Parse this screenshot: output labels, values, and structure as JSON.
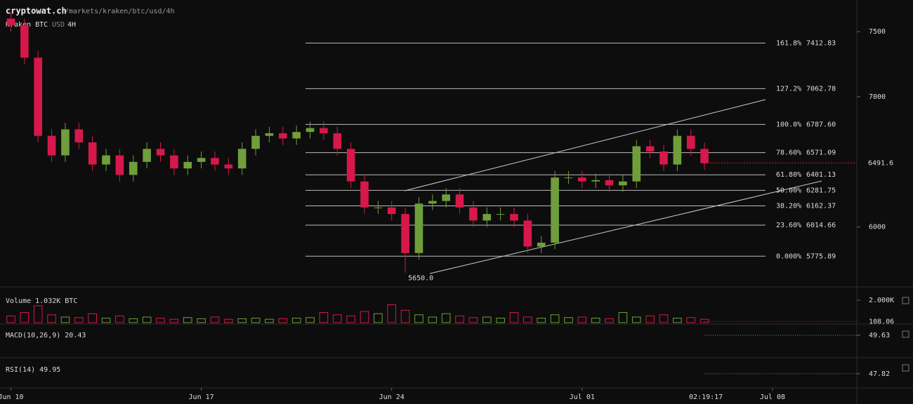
{
  "header": {
    "site": "cryptowat.ch",
    "path": "/markets/kraken/btc/usd/4h",
    "market": "Kraken BTC",
    "quote": "USD",
    "interval": "4H"
  },
  "chart_data": [
    {
      "type": "candlestick",
      "x": [
        0,
        0.5,
        1,
        1.5,
        2,
        2.5,
        3,
        3.5,
        4,
        4.5,
        5,
        5.5,
        6,
        6.5,
        7,
        7.5,
        8,
        8.5,
        9,
        9.5,
        10,
        10.5,
        11,
        11.5,
        12,
        12.5,
        13,
        13.5,
        14,
        14.5,
        15,
        15.5,
        16,
        16.5,
        17,
        17.5,
        18,
        18.5,
        19,
        19.5,
        20,
        20.5,
        21,
        21.5,
        22,
        22.5,
        23,
        23.5,
        24,
        24.5,
        25,
        25.5
      ],
      "open": [
        7600,
        7550,
        7300,
        6700,
        6550,
        6750,
        6650,
        6480,
        6550,
        6400,
        6500,
        6600,
        6550,
        6450,
        6500,
        6530,
        6480,
        6450,
        6600,
        6700,
        6720,
        6680,
        6730,
        6760,
        6720,
        6600,
        6350,
        6150,
        6150,
        6100,
        5800,
        6180,
        6200,
        6250,
        6150,
        6050,
        6100,
        6100,
        6050,
        5850,
        5880,
        6380,
        6380,
        6350,
        6360,
        6320,
        6350,
        6620,
        6580,
        6480,
        6700,
        6600
      ],
      "high": [
        7650,
        7600,
        7350,
        6750,
        6800,
        6800,
        6700,
        6600,
        6600,
        6550,
        6650,
        6650,
        6600,
        6550,
        6580,
        6580,
        6530,
        6650,
        6750,
        6770,
        6770,
        6780,
        6810,
        6810,
        6770,
        6650,
        6400,
        6200,
        6200,
        6150,
        6230,
        6250,
        6300,
        6300,
        6200,
        6150,
        6150,
        6150,
        6100,
        5930,
        6430,
        6430,
        6430,
        6410,
        6410,
        6400,
        6670,
        6670,
        6630,
        6750,
        6750,
        6650
      ],
      "low": [
        7500,
        7250,
        6650,
        6500,
        6500,
        6600,
        6430,
        6430,
        6350,
        6350,
        6450,
        6500,
        6400,
        6400,
        6450,
        6430,
        6400,
        6400,
        6550,
        6650,
        6630,
        6630,
        6680,
        6670,
        6550,
        6300,
        6100,
        6100,
        6050,
        5650,
        5750,
        6130,
        6150,
        6100,
        6000,
        6000,
        6050,
        6000,
        5800,
        5800,
        5830,
        6330,
        6300,
        6300,
        6270,
        6270,
        6300,
        6530,
        6430,
        6430,
        6550,
        6440
      ],
      "close": [
        7550,
        7300,
        6700,
        6550,
        6750,
        6650,
        6480,
        6550,
        6400,
        6500,
        6600,
        6550,
        6450,
        6500,
        6530,
        6480,
        6450,
        6600,
        6700,
        6720,
        6680,
        6730,
        6760,
        6720,
        6600,
        6350,
        6150,
        6150,
        6100,
        5800,
        6180,
        6200,
        6250,
        6150,
        6050,
        6100,
        6100,
        6050,
        5850,
        5880,
        6380,
        6380,
        6350,
        6360,
        6320,
        6350,
        6620,
        6580,
        6480,
        6700,
        6600,
        6490
      ],
      "xlim": [
        -0.4,
        31.1
      ],
      "xticks": [
        {
          "value": 0,
          "label": "Jun 10"
        },
        {
          "value": 7,
          "label": "Jun 17"
        },
        {
          "value": 14,
          "label": "Jun 24"
        },
        {
          "value": 21,
          "label": "Jul 01"
        },
        {
          "value": 28,
          "label": "Jul 08"
        }
      ],
      "ylim": [
        5546,
        7743
      ],
      "yticks": [
        6000,
        7000,
        7500
      ],
      "up_color": "#6f9e3b",
      "down_color": "#d6184a",
      "fib_levels": [
        {
          "ratio": "161.8%",
          "price": 7412.83
        },
        {
          "ratio": "127.2%",
          "price": 7062.78
        },
        {
          "ratio": "100.0%",
          "price": {
            "value": 6787.6,
            "label": "6787.60"
          }
        },
        {
          "ratio": "78.60%",
          "price": 6571.09
        },
        {
          "ratio": "61.80%",
          "price": 6401.13
        },
        {
          "ratio": "50.00%",
          "price": 6281.75
        },
        {
          "ratio": "38.20%",
          "price": 6162.37
        },
        {
          "ratio": "23.60%",
          "price": 6014.66
        },
        {
          "ratio": "0.000%",
          "price": 5775.89
        }
      ],
      "last_price": 6491.6,
      "low_label": {
        "value": 5650,
        "label": "5650.0"
      },
      "current_time": "02:19:17"
    },
    {
      "type": "bar",
      "title": "Volume 1.032K BTC",
      "values": [
        600,
        900,
        1500,
        700,
        500,
        450,
        800,
        400,
        600,
        350,
        500,
        400,
        300,
        450,
        350,
        500,
        300,
        350,
        400,
        300,
        350,
        400,
        450,
        900,
        700,
        600,
        1000,
        800,
        1600,
        1100,
        700,
        500,
        800,
        600,
        450,
        500,
        400,
        900,
        500,
        400,
        700,
        450,
        500,
        400,
        350,
        900,
        500,
        600,
        700,
        400,
        450,
        300
      ],
      "ylim": [
        0,
        3000
      ],
      "yticks": [
        {
          "value": 2000,
          "label": "2.000K"
        }
      ],
      "last_value": 108.06
    },
    {
      "type": "indicator",
      "title": "MACD(10,26,9) 20.43",
      "ylim": [
        -150,
        150
      ],
      "last_value": 49.63
    },
    {
      "type": "indicator",
      "title": "RSI(14) 49.95",
      "ylim": [
        0,
        100
      ],
      "last_value": 47.82
    }
  ]
}
